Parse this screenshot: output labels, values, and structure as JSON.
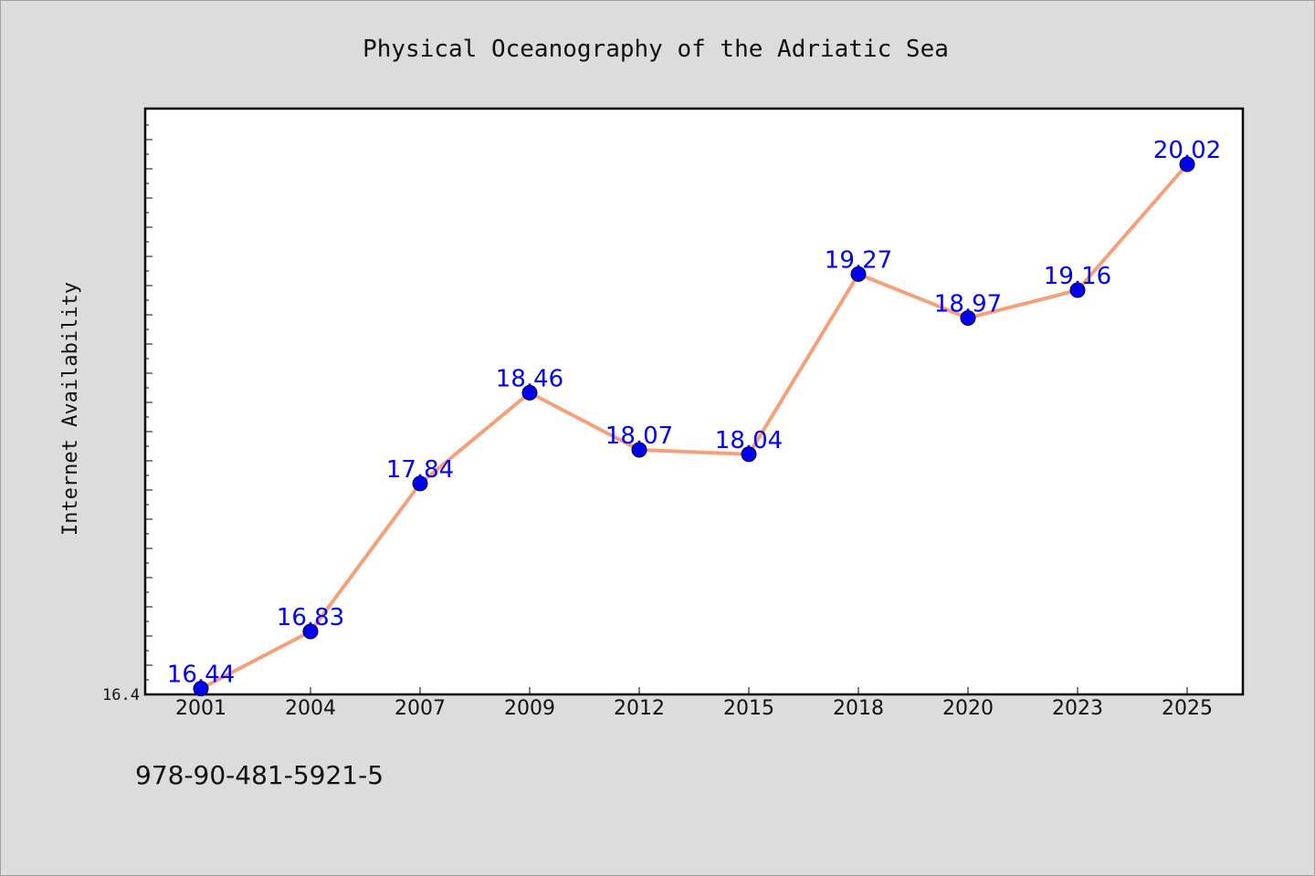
{
  "chart_data": {
    "type": "line",
    "title": "Physical Oceanography of the Adriatic Sea",
    "xlabel": "",
    "ylabel": "Internet Availability",
    "categories": [
      "2001",
      "2004",
      "2007",
      "2009",
      "2012",
      "2015",
      "2018",
      "2020",
      "2023",
      "2025"
    ],
    "series": [
      {
        "values": [
          16.44,
          16.83,
          17.84,
          18.46,
          18.07,
          18.04,
          19.27,
          18.97,
          19.16,
          20.02
        ],
        "line_color": "#f4a07a",
        "marker_color": "#0000ee",
        "label_color": "#0000ee"
      }
    ],
    "ylim": [
      16.4,
      20.4
    ],
    "y_tick_labels": [
      "16.4"
    ],
    "grid": false,
    "legend": "none"
  },
  "footer": {
    "isbn": "978-90-481-5921-5"
  }
}
